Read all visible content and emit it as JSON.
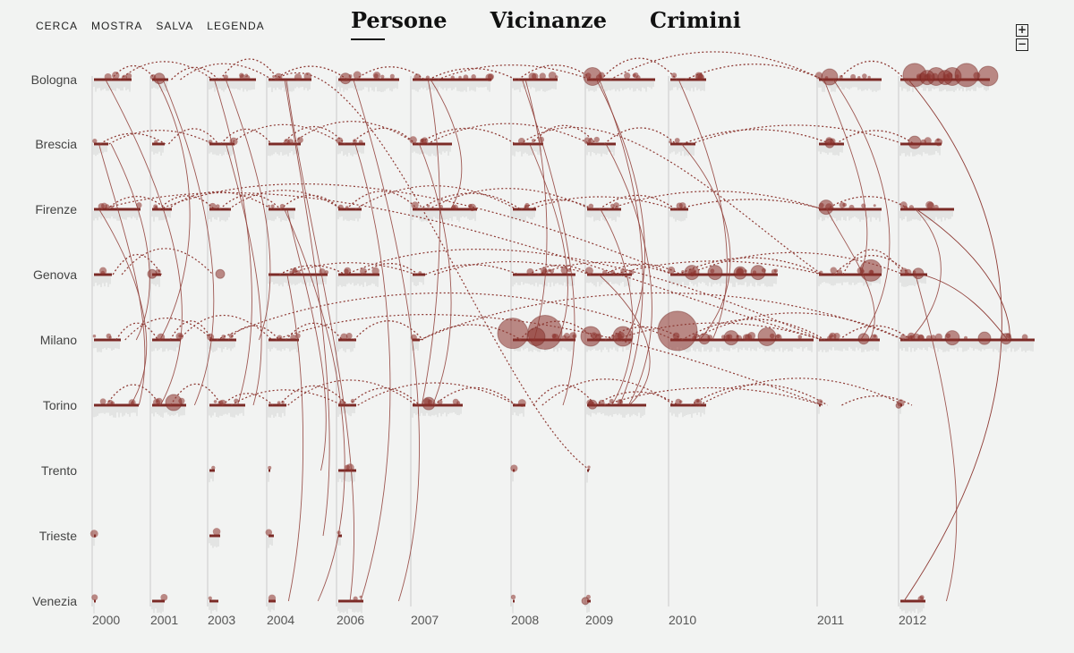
{
  "toolbar": {
    "search": "CERCA",
    "show": "MOSTRA",
    "save": "SALVA",
    "legend": "LEGENDA"
  },
  "tabs": [
    {
      "label": "Persone",
      "active": true
    },
    {
      "label": "Vicinanze",
      "active": false
    },
    {
      "label": "Crimini",
      "active": false
    }
  ],
  "zoom": {
    "in_icon": "plus-icon",
    "out_icon": "minus-icon",
    "in_symbol": "+",
    "out_symbol": "−"
  },
  "colors": {
    "accent": "#7a2a26",
    "bubble": "#8b2f2a",
    "line": "#8e3b35",
    "guide": "#c9c9c9",
    "background": "#f2f3f2"
  },
  "chart_data": {
    "type": "network-timeline",
    "cities": [
      "Bologna",
      "Brescia",
      "Firenze",
      "Genova",
      "Milano",
      "Torino",
      "Trento",
      "Trieste",
      "Venezia"
    ],
    "years": [
      "2000",
      "2001",
      "2003",
      "2004",
      "2006",
      "2007",
      "2008",
      "2009",
      "2010",
      "2011",
      "2012"
    ]
  }
}
